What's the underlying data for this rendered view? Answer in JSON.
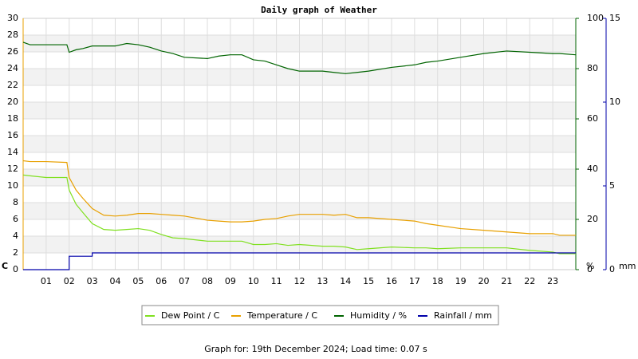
{
  "chart_data": {
    "type": "line",
    "title": "Daily graph of Weather",
    "x": [
      0,
      0.3,
      1,
      1.9,
      2,
      2.3,
      2.6,
      3,
      3.5,
      4,
      4.5,
      5,
      5.5,
      6,
      6.5,
      7,
      8,
      8.5,
      9,
      9.5,
      10,
      10.5,
      11,
      11.5,
      12,
      13,
      13.5,
      14,
      14.5,
      15,
      16,
      17,
      17.5,
      18,
      19,
      20,
      21,
      22,
      23,
      23.3,
      24
    ],
    "xlim": [
      0,
      24
    ],
    "xticks": [
      {
        "value": 1,
        "label": "01"
      },
      {
        "value": 2,
        "label": "02"
      },
      {
        "value": 3,
        "label": "03"
      },
      {
        "value": 4,
        "label": "04"
      },
      {
        "value": 5,
        "label": "05"
      },
      {
        "value": 6,
        "label": "06"
      },
      {
        "value": 7,
        "label": "07"
      },
      {
        "value": 8,
        "label": "08"
      },
      {
        "value": 9,
        "label": "09"
      },
      {
        "value": 10,
        "label": "10"
      },
      {
        "value": 11,
        "label": "11"
      },
      {
        "value": 12,
        "label": "12"
      },
      {
        "value": 13,
        "label": "13"
      },
      {
        "value": 14,
        "label": "14"
      },
      {
        "value": 15,
        "label": "15"
      },
      {
        "value": 16,
        "label": "16"
      },
      {
        "value": 17,
        "label": "17"
      },
      {
        "value": 18,
        "label": "18"
      },
      {
        "value": 19,
        "label": "19"
      },
      {
        "value": 20,
        "label": "20"
      },
      {
        "value": 21,
        "label": "21"
      },
      {
        "value": 22,
        "label": "22"
      },
      {
        "value": 23,
        "label": "23"
      }
    ],
    "ylim": [
      0,
      30
    ],
    "yticks": [
      0,
      2,
      4,
      6,
      8,
      10,
      12,
      14,
      16,
      18,
      20,
      22,
      24,
      26,
      28,
      30
    ],
    "y_unit": "C",
    "y_color": "#e8a000",
    "y2lim": [
      0,
      100
    ],
    "y2ticks": [
      0,
      20,
      40,
      60,
      80,
      100
    ],
    "y2_unit": "%",
    "y2_color": "#006400",
    "y3lim": [
      0,
      15
    ],
    "y3ticks": [
      0,
      5,
      10,
      15
    ],
    "y3_unit": "mm",
    "y3_color": "#0000aa",
    "grid": true,
    "series": [
      {
        "name": "Dew Point / C",
        "color": "#80e020",
        "axis": "y",
        "values": [
          11.3,
          11.2,
          11.0,
          11.0,
          9.5,
          7.8,
          6.8,
          5.5,
          4.8,
          4.7,
          4.8,
          4.9,
          4.7,
          4.2,
          3.8,
          3.7,
          3.4,
          3.4,
          3.4,
          3.4,
          3.0,
          3.0,
          3.1,
          2.9,
          3.0,
          2.8,
          2.8,
          2.7,
          2.4,
          2.5,
          2.7,
          2.6,
          2.6,
          2.5,
          2.6,
          2.6,
          2.6,
          2.3,
          2.1,
          1.9,
          1.9
        ]
      },
      {
        "name": "Temperature / C",
        "color": "#e8a000",
        "axis": "y",
        "values": [
          13,
          12.9,
          12.9,
          12.8,
          11,
          9.5,
          8.5,
          7.3,
          6.5,
          6.4,
          6.5,
          6.7,
          6.7,
          6.6,
          6.5,
          6.4,
          5.9,
          5.8,
          5.7,
          5.7,
          5.8,
          6.0,
          6.1,
          6.4,
          6.6,
          6.6,
          6.5,
          6.6,
          6.2,
          6.2,
          6.0,
          5.8,
          5.5,
          5.3,
          4.9,
          4.7,
          4.5,
          4.3,
          4.3,
          4.1,
          4.1
        ]
      },
      {
        "name": "Humidity / %",
        "color": "#006400",
        "axis": "y2",
        "values": [
          90.5,
          89.5,
          89.5,
          89.5,
          86.5,
          87.5,
          88,
          89,
          89,
          89,
          90,
          89.5,
          88.5,
          87,
          86,
          84.5,
          84,
          85,
          85.5,
          85.5,
          83.5,
          83,
          81.5,
          80,
          79,
          79,
          78.5,
          78,
          78.5,
          79,
          80.5,
          81.5,
          82.5,
          83,
          84.5,
          86,
          87,
          86.5,
          86,
          86,
          85.5
        ]
      },
      {
        "name": "Rainfall / mm",
        "color": "#0000aa",
        "axis": "y3",
        "step": true,
        "values": [
          0,
          0,
          0,
          0,
          0.8,
          0.8,
          0.8,
          1.0,
          1.0,
          1.0,
          1.0,
          1.0,
          1.0,
          1.0,
          1.0,
          1.0,
          1.0,
          1.0,
          1.0,
          1.0,
          1.0,
          1.0,
          1.0,
          1.0,
          1.0,
          1.0,
          1.0,
          1.0,
          1.0,
          1.0,
          1.0,
          1.0,
          1.0,
          1.0,
          1.0,
          1.0,
          1.0,
          1.0,
          1.0,
          1.0,
          1.0
        ]
      }
    ],
    "footer": "Graph for: 19th December 2024; Load time: 0.07 s"
  }
}
